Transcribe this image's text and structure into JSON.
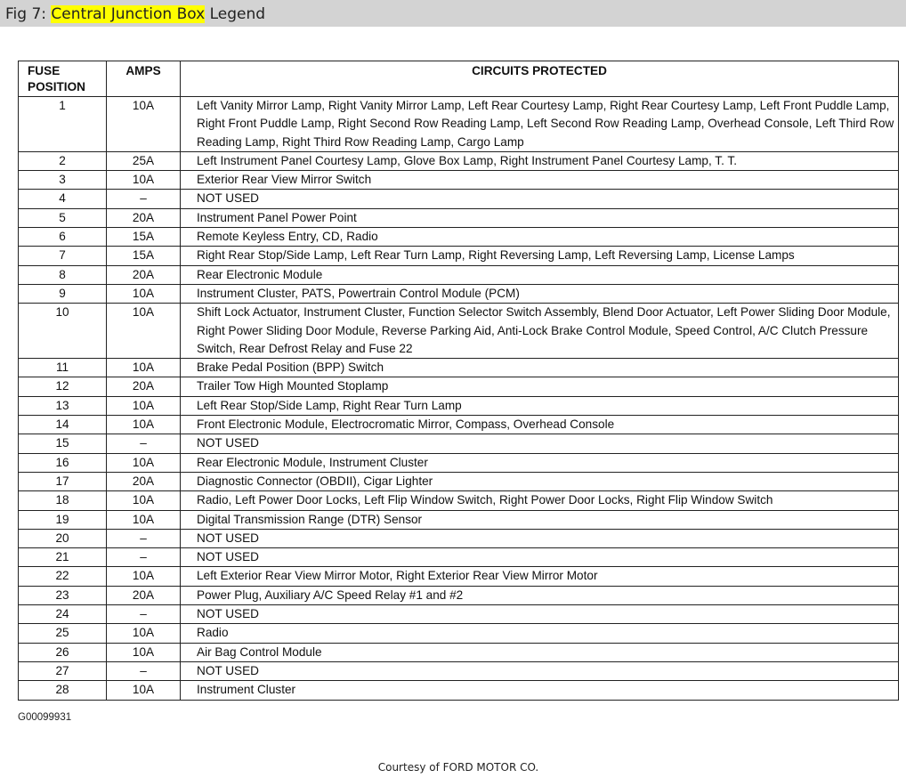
{
  "title": {
    "prefix": "Fig 7: ",
    "highlight": "Central Junction Box",
    "suffix": " Legend"
  },
  "table": {
    "headers": {
      "position_line1": "FUSE",
      "position_line2": "POSITION",
      "amps": "AMPS",
      "circuits": "CIRCUITS PROTECTED"
    },
    "rows": [
      [
        "1",
        "10A",
        "Left Vanity Mirror Lamp, Right Vanity Mirror Lamp, Left Rear Courtesy Lamp, Right Rear Courtesy Lamp, Left Front Puddle Lamp, Right Front Puddle Lamp, Right Second Row Reading Lamp, Left Second Row Reading Lamp, Overhead Console, Left Third Row Reading Lamp, Right Third Row Reading Lamp, Cargo Lamp"
      ],
      [
        "2",
        "25A",
        "Left Instrument Panel Courtesy Lamp, Glove Box Lamp, Right Instrument Panel Courtesy Lamp, T. T."
      ],
      [
        "3",
        "10A",
        "Exterior Rear View Mirror Switch"
      ],
      [
        "4",
        "–",
        "NOT USED"
      ],
      [
        "5",
        "20A",
        "Instrument Panel Power Point"
      ],
      [
        "6",
        "15A",
        "Remote Keyless Entry, CD, Radio"
      ],
      [
        "7",
        "15A",
        "Right Rear Stop/Side Lamp, Left Rear Turn Lamp, Right Reversing Lamp, Left Reversing Lamp, License Lamps"
      ],
      [
        "8",
        "20A",
        "Rear Electronic Module"
      ],
      [
        "9",
        "10A",
        "Instrument Cluster, PATS, Powertrain Control Module (PCM)"
      ],
      [
        "10",
        "10A",
        "Shift Lock Actuator, Instrument Cluster, Function Selector Switch Assembly, Blend Door Actuator, Left Power Sliding Door Module, Right Power Sliding Door Module, Reverse Parking Aid, Anti-Lock Brake Control Module, Speed Control, A/C Clutch Pressure Switch, Rear Defrost Relay and Fuse 22"
      ],
      [
        "11",
        "10A",
        "Brake Pedal Position (BPP) Switch"
      ],
      [
        "12",
        "20A",
        "Trailer Tow High Mounted Stoplamp"
      ],
      [
        "13",
        "10A",
        "Left Rear Stop/Side Lamp, Right Rear Turn Lamp"
      ],
      [
        "14",
        "10A",
        "Front Electronic Module, Electrocromatic Mirror, Compass, Overhead Console"
      ],
      [
        "15",
        "–",
        "NOT USED"
      ],
      [
        "16",
        "10A",
        "Rear Electronic Module, Instrument Cluster"
      ],
      [
        "17",
        "20A",
        "Diagnostic Connector (OBDII), Cigar Lighter"
      ],
      [
        "18",
        "10A",
        "Radio, Left Power Door Locks, Left Flip Window Switch, Right Power Door Locks, Right Flip Window Switch"
      ],
      [
        "19",
        "10A",
        "Digital Transmission Range (DTR) Sensor"
      ],
      [
        "20",
        "–",
        "NOT USED"
      ],
      [
        "21",
        "–",
        "NOT USED"
      ],
      [
        "22",
        "10A",
        "Left Exterior Rear View Mirror Motor, Right Exterior Rear View Mirror Motor"
      ],
      [
        "23",
        "20A",
        "Power Plug, Auxiliary A/C Speed Relay #1 and #2"
      ],
      [
        "24",
        "–",
        "NOT USED"
      ],
      [
        "25",
        "10A",
        "Radio"
      ],
      [
        "26",
        "10A",
        "Air Bag Control Module"
      ],
      [
        "27",
        "–",
        "NOT USED"
      ],
      [
        "28",
        "10A",
        "Instrument Cluster"
      ]
    ]
  },
  "figure_code": "G00099931",
  "courtesy": "Courtesy of FORD MOTOR CO."
}
